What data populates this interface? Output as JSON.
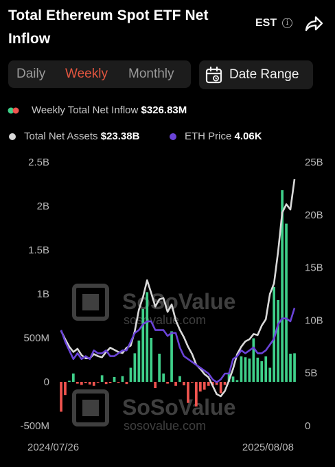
{
  "header": {
    "title": "Total Ethereum Spot ETF Net Inflow",
    "timezone": "EST"
  },
  "controls": {
    "tabs": [
      "Daily",
      "Weekly",
      "Monthly"
    ],
    "active_tab": "Weekly",
    "date_range_label": "Date Range"
  },
  "legend": {
    "inflow_label": "Weekly Total Net Inflow",
    "inflow_value": "$326.83M",
    "assets_label": "Total Net Assets",
    "assets_value": "$23.38B",
    "eth_label": "ETH Price",
    "eth_value": "4.06K"
  },
  "watermark": {
    "text": "SoSoValue",
    "url": "sosovalue.com"
  },
  "colors": {
    "inflow_positive": "#3fd08a",
    "inflow_negative": "#f0544f",
    "total_assets": "#d9d9d9",
    "eth_price": "#6a43d8",
    "active_tab": "#e2553f"
  },
  "chart_data": {
    "type": "bar+line",
    "x_tick_labels": [
      "2024/07/26",
      "2025/08/08"
    ],
    "left_axis": {
      "ticks": [
        "2.5B",
        "2B",
        "1.5B",
        "1B",
        "500M",
        "0",
        "-500M"
      ],
      "range": [
        -500000000,
        2500000000
      ]
    },
    "right_axis": {
      "ticks": [
        "25B",
        "20B",
        "15B",
        "10B",
        "5B",
        "0"
      ],
      "range": [
        0,
        25000000000
      ]
    },
    "series": [
      {
        "name": "Weekly Total Net Inflow",
        "axis": "left",
        "type": "bar",
        "unit": "USD M",
        "values": [
          -340,
          -150,
          12,
          95,
          -20,
          -35,
          -15,
          -30,
          -45,
          -10,
          75,
          -25,
          -15,
          55,
          -12,
          65,
          -25,
          160,
          325,
          470,
          830,
          1020,
          500,
          -70,
          320,
          95,
          -20,
          575,
          -45,
          65,
          -40,
          -240,
          -10,
          -280,
          -110,
          -90,
          -45,
          -40,
          -35,
          -130,
          -35,
          105,
          60,
          20,
          290,
          280,
          265,
          495,
          275,
          235,
          290,
          160,
          1080,
          930,
          2180,
          1800,
          320,
          325
        ]
      },
      {
        "name": "Total Net Assets",
        "axis": "right",
        "type": "line",
        "unit": "USD B",
        "values": [
          9.0,
          8.2,
          7.5,
          7.0,
          7.3,
          6.7,
          6.4,
          6.4,
          6.8,
          6.6,
          6.5,
          7.0,
          7.4,
          7.2,
          7.0,
          6.9,
          7.4,
          7.6,
          9.0,
          11.0,
          12.2,
          13.8,
          12.6,
          11.3,
          12.0,
          12.1,
          10.8,
          11.5,
          10.0,
          9.1,
          8.4,
          7.5,
          6.8,
          5.8,
          5.4,
          4.9,
          4.6,
          3.8,
          3.0,
          2.8,
          3.3,
          4.3,
          5.4,
          6.8,
          7.5,
          8.0,
          8.2,
          8.7,
          8.6,
          9.5,
          10.1,
          12.5,
          13.5,
          16.5,
          20.2,
          21.0,
          20.5,
          23.38
        ]
      },
      {
        "name": "ETH Price",
        "axis": "right",
        "type": "line",
        "unit": "USD K",
        "values": [
          3.3,
          2.9,
          2.6,
          2.3,
          2.5,
          2.3,
          2.4,
          2.3,
          2.6,
          2.5,
          2.5,
          2.6,
          2.4,
          2.4,
          2.5,
          2.6,
          2.6,
          2.9,
          3.2,
          3.3,
          3.5,
          3.6,
          3.6,
          3.3,
          3.3,
          3.3,
          3.1,
          3.2,
          3.2,
          2.7,
          2.4,
          2.3,
          2.2,
          2.1,
          2.0,
          1.9,
          1.8,
          1.6,
          1.5,
          1.6,
          1.8,
          1.8,
          2.3,
          2.4,
          2.6,
          2.5,
          2.6,
          2.7,
          2.5,
          2.5,
          2.6,
          2.8,
          3.0,
          3.5,
          3.7,
          3.7,
          3.6,
          4.06
        ]
      }
    ]
  }
}
